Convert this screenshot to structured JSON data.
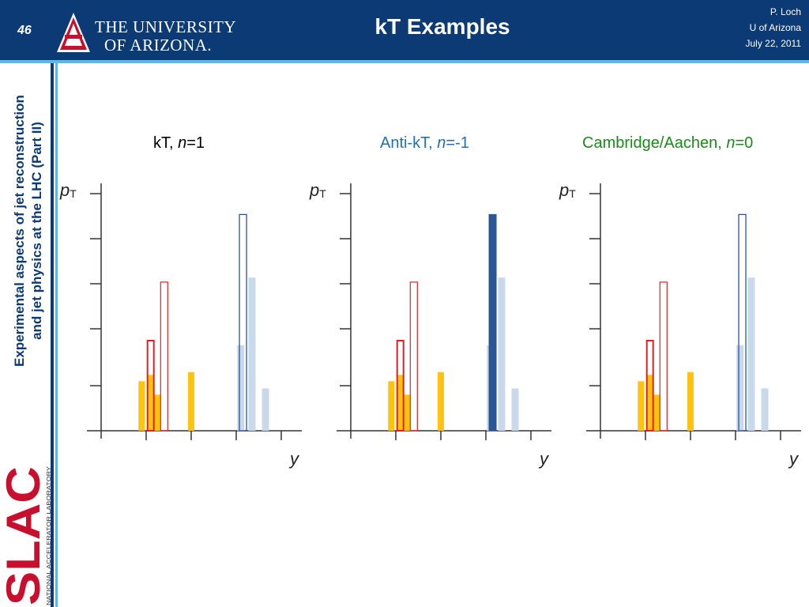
{
  "header": {
    "slide_number": "46",
    "university_line1": "THE UNIVERSITY",
    "university_line2": "OF ARIZONA.",
    "title": "kT Examples",
    "author": "P. Loch",
    "affiliation": "U of Arizona",
    "date": "July 22, 2011"
  },
  "sidebar": {
    "line1": "Experimental aspects of jet reconstruction",
    "line2": "and jet physics at the LHC (Part II)",
    "logo_text": "SLAC",
    "lab_text": "NATIONAL ACCELERATOR LABORATORY"
  },
  "panels": [
    {
      "label_prefix": "kT, ",
      "label_n": "n",
      "label_suffix": "=1",
      "color": "#000000"
    },
    {
      "label_prefix": "Anti-kT, ",
      "label_n": "n",
      "label_suffix": "=-1",
      "color": "#1f6fb5"
    },
    {
      "label_prefix": "Cambridge/Aachen, ",
      "label_n": "n",
      "label_suffix": "=0",
      "color": "#1a8a1a"
    }
  ],
  "axis": {
    "y_label": "pT",
    "x_label": "y"
  },
  "colors": {
    "navy": "#0b3a75",
    "accent": "#5bb8e8",
    "orange": "#ffc20e",
    "red": "#e02020",
    "lightblue": "#c9d8ea",
    "jetblue": "#2a5596",
    "slac_red": "#c8102e"
  },
  "chart_data": [
    {
      "type": "bar",
      "title": "kT, n=1",
      "xlabel": "y",
      "ylabel": "pT",
      "particles": [
        {
          "x": 0.9,
          "h": 0.55,
          "kind": "soft"
        },
        {
          "x": 1.1,
          "h": 0.62,
          "kind": "soft"
        },
        {
          "x": 1.25,
          "h": 0.4,
          "kind": "soft"
        },
        {
          "x": 2.0,
          "h": 0.65,
          "kind": "soft"
        },
        {
          "x": 3.1,
          "h": 0.95,
          "kind": "hard"
        },
        {
          "x": 3.35,
          "h": 1.7,
          "kind": "hard"
        },
        {
          "x": 3.65,
          "h": 0.47,
          "kind": "hard"
        }
      ],
      "jets": [
        {
          "x": 1.1,
          "h": 1.0,
          "style": "red-thick"
        },
        {
          "x": 1.4,
          "h": 1.65,
          "style": "red-outline"
        },
        {
          "x": 3.15,
          "h": 2.4,
          "style": "blue-outline"
        }
      ]
    },
    {
      "type": "bar",
      "title": "Anti-kT, n=-1",
      "xlabel": "y",
      "ylabel": "pT",
      "particles": [
        {
          "x": 0.9,
          "h": 0.55,
          "kind": "soft"
        },
        {
          "x": 1.1,
          "h": 0.62,
          "kind": "soft"
        },
        {
          "x": 1.25,
          "h": 0.4,
          "kind": "soft"
        },
        {
          "x": 2.0,
          "h": 0.65,
          "kind": "soft"
        },
        {
          "x": 3.1,
          "h": 0.95,
          "kind": "hard"
        },
        {
          "x": 3.35,
          "h": 1.7,
          "kind": "hard"
        },
        {
          "x": 3.65,
          "h": 0.47,
          "kind": "hard"
        }
      ],
      "jets": [
        {
          "x": 1.1,
          "h": 1.0,
          "style": "red-thick"
        },
        {
          "x": 1.4,
          "h": 1.65,
          "style": "red-outline"
        },
        {
          "x": 3.15,
          "h": 2.4,
          "style": "blue-solid"
        }
      ]
    },
    {
      "type": "bar",
      "title": "Cambridge/Aachen, n=0",
      "xlabel": "y",
      "ylabel": "pT",
      "particles": [
        {
          "x": 0.9,
          "h": 0.55,
          "kind": "soft"
        },
        {
          "x": 1.1,
          "h": 0.62,
          "kind": "soft"
        },
        {
          "x": 1.25,
          "h": 0.4,
          "kind": "soft"
        },
        {
          "x": 2.0,
          "h": 0.65,
          "kind": "soft"
        },
        {
          "x": 3.1,
          "h": 0.95,
          "kind": "hard"
        },
        {
          "x": 3.35,
          "h": 1.7,
          "kind": "hard"
        },
        {
          "x": 3.65,
          "h": 0.47,
          "kind": "hard"
        }
      ],
      "jets": [
        {
          "x": 1.1,
          "h": 1.0,
          "style": "red-thick"
        },
        {
          "x": 1.4,
          "h": 1.65,
          "style": "red-outline"
        },
        {
          "x": 3.15,
          "h": 2.4,
          "style": "blue-outline"
        }
      ]
    }
  ]
}
